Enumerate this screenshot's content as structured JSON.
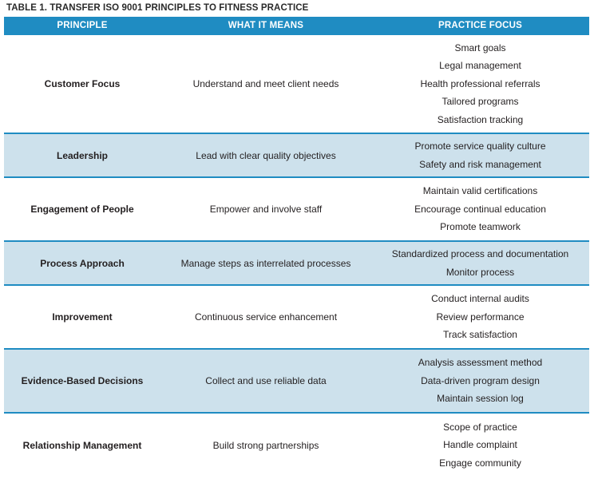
{
  "title": "TABLE 1. TRANSFER ISO 9001 PRINCIPLES TO FITNESS PRACTICE",
  "colors": {
    "header_bg": "#1f8cc2",
    "shaded_row_bg": "#cde1ec",
    "divider": "#1f8cc2"
  },
  "headers": [
    "PRINCIPLE",
    "WHAT IT MEANS",
    "PRACTICE FOCUS"
  ],
  "rows": [
    {
      "principle": "Customer Focus",
      "meaning": "Understand and meet client needs",
      "focus": [
        "Smart goals",
        "Legal management",
        "Health professional referrals",
        "Tailored programs",
        "Satisfaction tracking"
      ]
    },
    {
      "principle": "Leadership",
      "meaning": "Lead with clear quality objectives",
      "focus": [
        "Promote service quality culture",
        "Safety and risk management"
      ]
    },
    {
      "principle": "Engagement of People",
      "meaning": "Empower and involve staff",
      "focus": [
        "Maintain valid certifications",
        "Encourage continual education",
        "Promote teamwork"
      ]
    },
    {
      "principle": "Process Approach",
      "meaning": "Manage steps as interrelated processes",
      "focus": [
        "Standardized process and documentation",
        "Monitor process"
      ]
    },
    {
      "principle": "Improvement",
      "meaning": "Continuous service enhancement",
      "focus": [
        "Conduct internal audits",
        "Review performance",
        "Track satisfaction"
      ]
    },
    {
      "principle": "Evidence-Based Decisions",
      "meaning": "Collect and use reliable data",
      "focus": [
        "Analysis assessment method",
        "Data-driven program design",
        "Maintain session log"
      ]
    },
    {
      "principle": "Relationship Management",
      "meaning": "Build strong partnerships",
      "focus": [
        "Scope of practice",
        "Handle complaint",
        "Engage community"
      ]
    }
  ]
}
